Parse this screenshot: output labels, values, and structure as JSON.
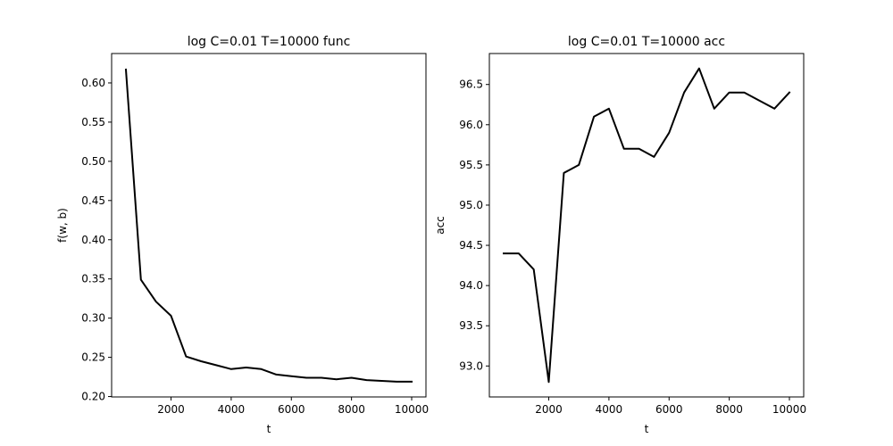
{
  "chart_data": [
    {
      "type": "line",
      "title": "log C=0.01 T=10000 func",
      "xlabel": "t",
      "ylabel": "f(w, b)",
      "xlim": [
        25,
        10475
      ],
      "ylim": [
        0.1995,
        0.6375
      ],
      "xticks": [
        2000,
        4000,
        6000,
        8000,
        10000
      ],
      "xtick_labels": [
        "2000",
        "4000",
        "6000",
        "8000",
        "10000"
      ],
      "yticks": [
        0.2,
        0.25,
        0.3,
        0.35,
        0.4,
        0.45,
        0.5,
        0.55,
        0.6
      ],
      "ytick_labels": [
        "0.20",
        "0.25",
        "0.30",
        "0.35",
        "0.40",
        "0.45",
        "0.50",
        "0.55",
        "0.60"
      ],
      "grid": false,
      "series": [
        {
          "color": "#000000",
          "x": [
            500,
            1000,
            1500,
            2000,
            2500,
            3000,
            3500,
            4000,
            4500,
            5000,
            5500,
            6000,
            6500,
            7000,
            7500,
            8000,
            8500,
            9000,
            9500,
            10000
          ],
          "y": [
            0.617,
            0.349,
            0.321,
            0.303,
            0.251,
            0.245,
            0.24,
            0.235,
            0.237,
            0.235,
            0.228,
            0.226,
            0.224,
            0.224,
            0.222,
            0.224,
            0.221,
            0.22,
            0.219,
            0.219
          ]
        }
      ]
    },
    {
      "type": "line",
      "title": "log C=0.01 T=10000 acc",
      "xlabel": "t",
      "ylabel": "acc",
      "xlim": [
        25,
        10475
      ],
      "ylim": [
        92.615,
        96.885
      ],
      "xticks": [
        2000,
        4000,
        6000,
        8000,
        10000
      ],
      "xtick_labels": [
        "2000",
        "4000",
        "6000",
        "8000",
        "10000"
      ],
      "yticks": [
        93.0,
        93.5,
        94.0,
        94.5,
        95.0,
        95.5,
        96.0,
        96.5
      ],
      "ytick_labels": [
        "93.0",
        "93.5",
        "94.0",
        "94.5",
        "95.0",
        "95.5",
        "96.0",
        "96.5"
      ],
      "grid": false,
      "series": [
        {
          "color": "#000000",
          "x": [
            500,
            1000,
            1500,
            2000,
            2500,
            3000,
            3500,
            4000,
            4500,
            5000,
            5500,
            6000,
            6500,
            7000,
            7500,
            8000,
            8500,
            9000,
            9500,
            10000
          ],
          "y": [
            94.4,
            94.4,
            94.2,
            92.8,
            95.4,
            95.5,
            96.1,
            96.2,
            95.7,
            95.7,
            95.6,
            95.9,
            96.4,
            96.7,
            96.2,
            96.4,
            96.4,
            96.3,
            96.2,
            96.4
          ]
        }
      ]
    }
  ]
}
